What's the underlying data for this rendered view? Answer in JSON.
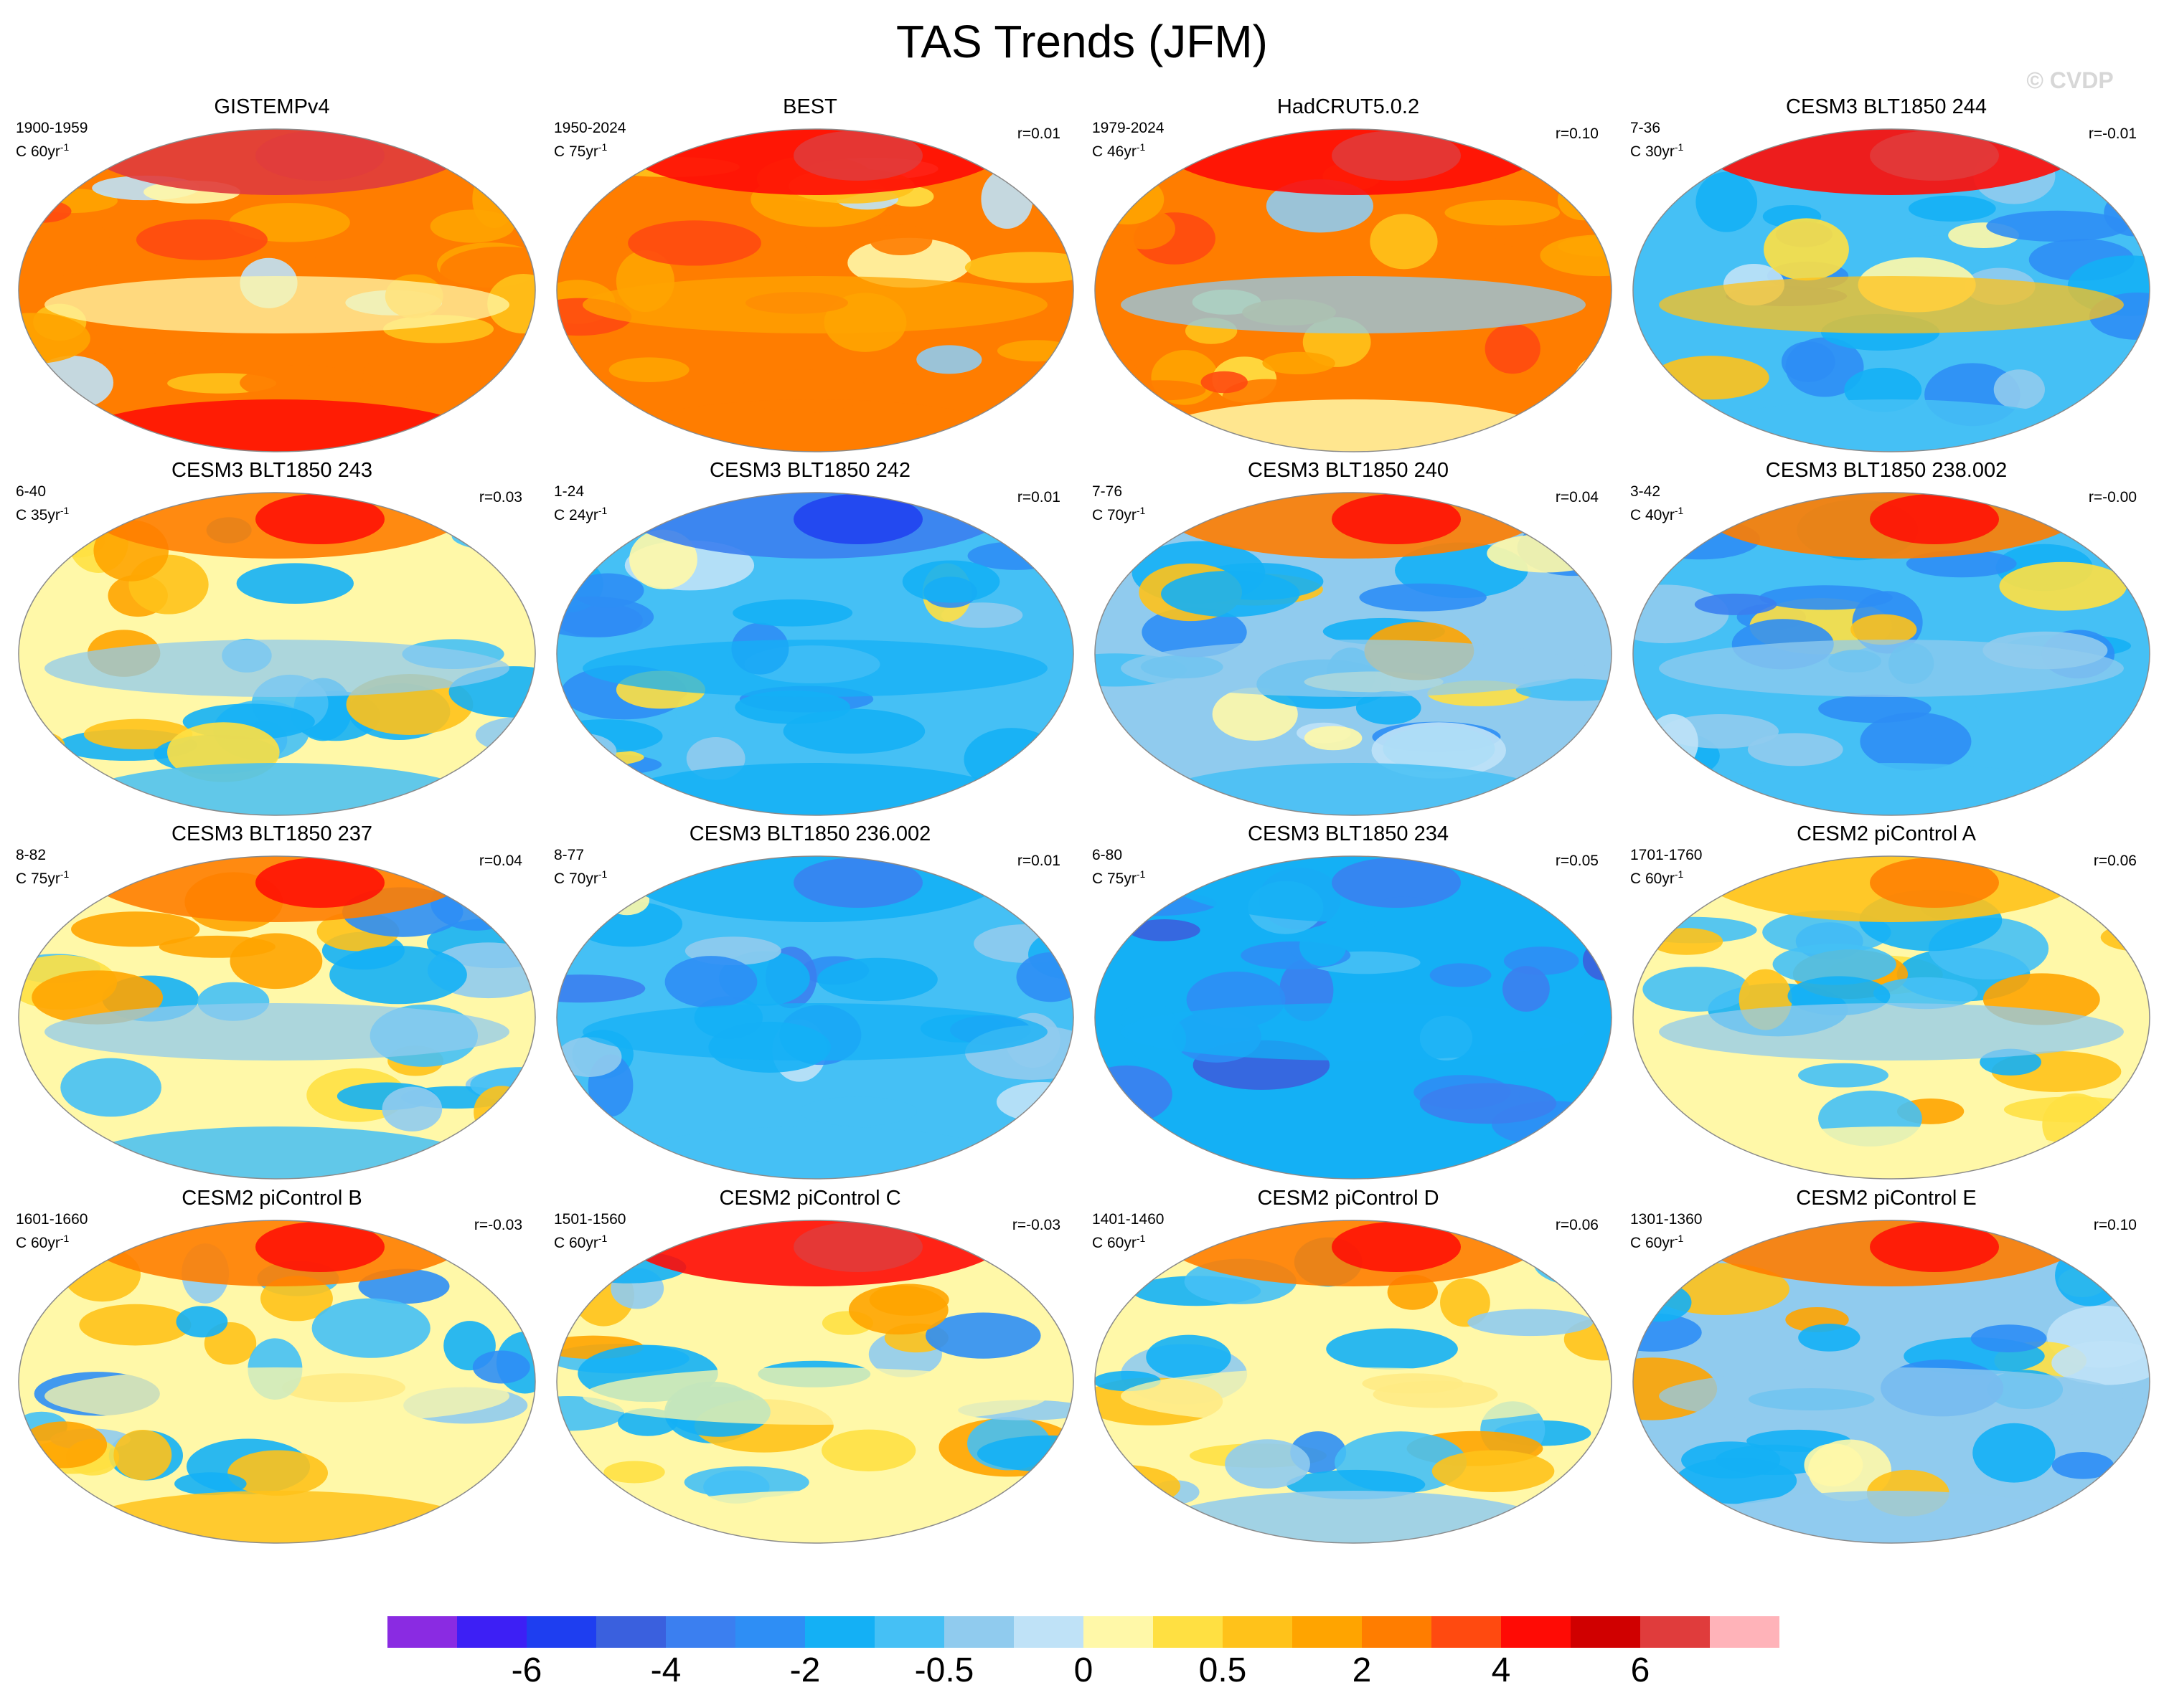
{
  "title": "TAS Trends (JFM)",
  "watermark": "© CVDP",
  "chart_data": {
    "type": "heatmap",
    "projection": "global-ellipse",
    "panels": [
      {
        "title": "GISTEMPv4",
        "period": "1900-1959",
        "trend_length": "C 60yr",
        "r": "",
        "pattern": {
          "base": 2,
          "arctic": 6,
          "tropics": 0,
          "south": 4
        }
      },
      {
        "title": "BEST",
        "period": "1950-2024",
        "trend_length": "C 75yr",
        "r": "r=0.01",
        "pattern": {
          "base": 2,
          "arctic": 4,
          "tropics": 1,
          "south": 2
        }
      },
      {
        "title": "HadCRUT5.0.2",
        "period": "1979-2024",
        "trend_length": "C 46yr",
        "r": "r=0.10",
        "pattern": {
          "base": 2,
          "arctic": 4,
          "tropics": -0.5,
          "south": 0
        }
      },
      {
        "title": "CESM3 BLT1850 244",
        "period": "7-36",
        "trend_length": "C 30yr",
        "r": "r=-0.01",
        "pattern": {
          "base": -1,
          "arctic": 4,
          "tropics": 0.5,
          "south": -1
        }
      },
      {
        "title": "CESM3 BLT1850 243",
        "period": "6-40",
        "trend_length": "C 35yr",
        "r": "r=0.03",
        "pattern": {
          "base": 0,
          "arctic": 2,
          "tropics": -0.5,
          "south": -1
        }
      },
      {
        "title": "CESM3 BLT1850 242",
        "period": "1-24",
        "trend_length": "C 24yr",
        "r": "r=0.01",
        "pattern": {
          "base": -1,
          "arctic": -4,
          "tropics": -2,
          "south": -2
        }
      },
      {
        "title": "CESM3 BLT1850 240",
        "period": "7-76",
        "trend_length": "C 70yr",
        "r": "r=0.04",
        "pattern": {
          "base": -0.5,
          "arctic": 2,
          "tropics": -0.5,
          "south": -1
        }
      },
      {
        "title": "CESM3 BLT1850 238.002",
        "period": "3-42",
        "trend_length": "C 40yr",
        "r": "r=-0.00",
        "pattern": {
          "base": -1,
          "arctic": 2,
          "tropics": -0.5,
          "south": -1
        }
      },
      {
        "title": "CESM3 BLT1850 237",
        "period": "8-82",
        "trend_length": "C 75yr",
        "r": "r=0.04",
        "pattern": {
          "base": 0,
          "arctic": 2,
          "tropics": -0.5,
          "south": -1
        }
      },
      {
        "title": "CESM3 BLT1850 236.002",
        "period": "8-77",
        "trend_length": "C 70yr",
        "r": "r=0.01",
        "pattern": {
          "base": -1,
          "arctic": -2,
          "tropics": -2,
          "south": -1
        }
      },
      {
        "title": "CESM3 BLT1850 234",
        "period": "6-80",
        "trend_length": "C 75yr",
        "r": "r=0.05",
        "pattern": {
          "base": -2,
          "arctic": -2,
          "tropics": -2,
          "south": -2
        }
      },
      {
        "title": "CESM2 piControl A",
        "period": "1701-1760",
        "trend_length": "C 60yr",
        "r": "r=0.06",
        "pattern": {
          "base": 0,
          "arctic": 0.5,
          "tropics": -0.5,
          "south": 0
        }
      },
      {
        "title": "CESM2 piControl B",
        "period": "1601-1660",
        "trend_length": "C 60yr",
        "r": "r=-0.03",
        "pattern": {
          "base": 0,
          "arctic": 2,
          "tropics": 0,
          "south": 0.5
        }
      },
      {
        "title": "CESM2 piControl C",
        "period": "1501-1560",
        "trend_length": "C 60yr",
        "r": "r=-0.03",
        "pattern": {
          "base": 0,
          "arctic": 4,
          "tropics": 0,
          "south": 0
        }
      },
      {
        "title": "CESM2 piControl D",
        "period": "1401-1460",
        "trend_length": "C 60yr",
        "r": "r=0.06",
        "pattern": {
          "base": 0,
          "arctic": 2,
          "tropics": 0,
          "south": -0.5
        }
      },
      {
        "title": "CESM2 piControl E",
        "period": "1301-1360",
        "trend_length": "C 60yr",
        "r": "r=0.10",
        "pattern": {
          "base": -0.5,
          "arctic": 2,
          "tropics": -0.5,
          "south": -0.5
        }
      }
    ],
    "colorbar": {
      "levels": [
        -6,
        -5,
        -4,
        -3,
        -2,
        -1,
        -0.5,
        -0.25,
        0,
        0.25,
        0.5,
        1,
        2,
        3,
        4,
        5,
        6
      ],
      "tick_labels": [
        {
          "level": -6,
          "label": "-6"
        },
        {
          "level": -4,
          "label": "-4"
        },
        {
          "level": -2,
          "label": "-2"
        },
        {
          "level": -0.5,
          "label": "-0.5"
        },
        {
          "level": 0,
          "label": "0"
        },
        {
          "level": 0.5,
          "label": "0.5"
        },
        {
          "level": 2,
          "label": "2"
        },
        {
          "level": 4,
          "label": "4"
        },
        {
          "level": 6,
          "label": "6"
        }
      ],
      "colors": [
        "#8a2be2",
        "#3d1ff5",
        "#1e3ef0",
        "#3a60de",
        "#3b7ff0",
        "#2e8ef5",
        "#14b0f5",
        "#45c0f5",
        "#90cbee",
        "#bfe2f7",
        "#fff8a8",
        "#ffe042",
        "#ffc21a",
        "#ffa400",
        "#ff7d00",
        "#ff4a10",
        "#ff0b05",
        "#d00000",
        "#e03c3c",
        "#ffb3b9"
      ]
    }
  }
}
